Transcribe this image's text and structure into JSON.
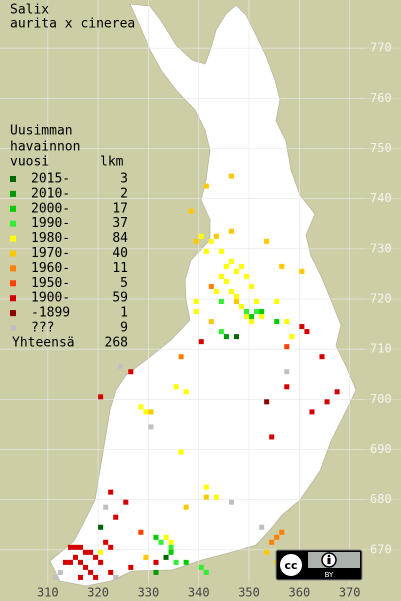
{
  "map": {
    "title": [
      "Salix",
      "aurita x cinerea"
    ],
    "legend": {
      "header": [
        "Uusimman",
        "havainnon",
        "vuosi"
      ],
      "count_header": "lkm",
      "items": [
        {
          "label": "2015-",
          "count": 3,
          "color": "#006400"
        },
        {
          "label": "2010-",
          "count": 2,
          "color": "#009a00"
        },
        {
          "label": "2000-",
          "count": 17,
          "color": "#00cc00"
        },
        {
          "label": "1990-",
          "count": 37,
          "color": "#33ee33"
        },
        {
          "label": "1980-",
          "count": 84,
          "color": "#ffff00"
        },
        {
          "label": "1970-",
          "count": 40,
          "color": "#ffc800"
        },
        {
          "label": "1960-",
          "count": 11,
          "color": "#ff8000"
        },
        {
          "label": "1950-",
          "count": 5,
          "color": "#ff4000"
        },
        {
          "label": "1900-",
          "count": 59,
          "color": "#d40000"
        },
        {
          "label": "-1899",
          "count": 1,
          "color": "#8c0000"
        },
        {
          "label": "???",
          "count": 9,
          "color": "#c0c0c0"
        }
      ],
      "total_label": "Yhteensä",
      "total": 268
    },
    "xlim": [
      300.5,
      380.2
    ],
    "ylim": [
      659.8,
      779.6
    ],
    "xticks": [
      310,
      320,
      330,
      340,
      350,
      360,
      370
    ],
    "yticks": [
      670,
      680,
      690,
      700,
      710,
      720,
      730,
      740,
      750,
      760,
      770
    ],
    "squares": [
      [
        345,
        726,
        4
      ],
      [
        346,
        727,
        4
      ],
      [
        347,
        725,
        4
      ],
      [
        348,
        726,
        4
      ],
      [
        344,
        724,
        4
      ],
      [
        345,
        723,
        4
      ],
      [
        349,
        724,
        4
      ],
      [
        350,
        722,
        4
      ],
      [
        346,
        721,
        4
      ],
      [
        347,
        720,
        4
      ],
      [
        351,
        719,
        4
      ],
      [
        348,
        718,
        4
      ],
      [
        349,
        716,
        4
      ],
      [
        350,
        715,
        4
      ],
      [
        352,
        716,
        4
      ],
      [
        343,
        721,
        4
      ],
      [
        344,
        729,
        4
      ],
      [
        342,
        731,
        4
      ],
      [
        340,
        732,
        4
      ],
      [
        341,
        729,
        4
      ],
      [
        339,
        719,
        4
      ],
      [
        339,
        717,
        4
      ],
      [
        335,
        702,
        4
      ],
      [
        337,
        701,
        4
      ],
      [
        328,
        698,
        4
      ],
      [
        329,
        697,
        4
      ],
      [
        333,
        672,
        4
      ],
      [
        334,
        671,
        4
      ],
      [
        320,
        669,
        4
      ],
      [
        341,
        682,
        4
      ],
      [
        343,
        680,
        4
      ],
      [
        336,
        689,
        4
      ],
      [
        355,
        719,
        4
      ],
      [
        357,
        715,
        4
      ],
      [
        358,
        712,
        4
      ],
      [
        341,
        742,
        5
      ],
      [
        339,
        731,
        5
      ],
      [
        343,
        732,
        5
      ],
      [
        346,
        733,
        5
      ],
      [
        353,
        731,
        5
      ],
      [
        356,
        726,
        5
      ],
      [
        360,
        725,
        5
      ],
      [
        346,
        744,
        5
      ],
      [
        338,
        737,
        5
      ],
      [
        342,
        715,
        5
      ],
      [
        341,
        680,
        5
      ],
      [
        337,
        678,
        5
      ],
      [
        355,
        667,
        5
      ],
      [
        353,
        669,
        5
      ],
      [
        329,
        668,
        5
      ],
      [
        330,
        697,
        5
      ],
      [
        347,
        719,
        5
      ],
      [
        349,
        717,
        3
      ],
      [
        351,
        717,
        3
      ],
      [
        344,
        719,
        3
      ],
      [
        332,
        671,
        3
      ],
      [
        334,
        670,
        3
      ],
      [
        335,
        667,
        3
      ],
      [
        341,
        665,
        3
      ],
      [
        340,
        666,
        3
      ],
      [
        344,
        713,
        3
      ],
      [
        350,
        716,
        2
      ],
      [
        352,
        717,
        2
      ],
      [
        334,
        669,
        2
      ],
      [
        331,
        672,
        2
      ],
      [
        337,
        667,
        2
      ],
      [
        355,
        715,
        2
      ],
      [
        345,
        712,
        1
      ],
      [
        331,
        665,
        1
      ],
      [
        347,
        712,
        0
      ],
      [
        333,
        668,
        0
      ],
      [
        320,
        674,
        0
      ],
      [
        354,
        671,
        6
      ],
      [
        355,
        672,
        6
      ],
      [
        342,
        722,
        6
      ],
      [
        336,
        708,
        6
      ],
      [
        356,
        673,
        6
      ],
      [
        357,
        710,
        7
      ],
      [
        328,
        673,
        7
      ],
      [
        314,
        670,
        8
      ],
      [
        315,
        670,
        8
      ],
      [
        316,
        670,
        8
      ],
      [
        317,
        669,
        8
      ],
      [
        318,
        669,
        8
      ],
      [
        319,
        668,
        8
      ],
      [
        315,
        668,
        8
      ],
      [
        316,
        667,
        8
      ],
      [
        317,
        666,
        8
      ],
      [
        318,
        665,
        8
      ],
      [
        314,
        667,
        8
      ],
      [
        320,
        667,
        8
      ],
      [
        321,
        671,
        8
      ],
      [
        322,
        665,
        8
      ],
      [
        313,
        667,
        8
      ],
      [
        316,
        664,
        8
      ],
      [
        319,
        664,
        8
      ],
      [
        322,
        670,
        8
      ],
      [
        323,
        676,
        8
      ],
      [
        325,
        679,
        8
      ],
      [
        322,
        681,
        8
      ],
      [
        326,
        666,
        8
      ],
      [
        331,
        667,
        8
      ],
      [
        354,
        692,
        8
      ],
      [
        365,
        699,
        8
      ],
      [
        367,
        701,
        8
      ],
      [
        362,
        697,
        8
      ],
      [
        361,
        713,
        8
      ],
      [
        364,
        708,
        8
      ],
      [
        320,
        700,
        8
      ],
      [
        357,
        702,
        8
      ],
      [
        340,
        711,
        8
      ],
      [
        326,
        705,
        8
      ],
      [
        360,
        714,
        8
      ],
      [
        353,
        699,
        9
      ],
      [
        311,
        664,
        10
      ],
      [
        312,
        665,
        10
      ],
      [
        321,
        678,
        10
      ],
      [
        323,
        664,
        10
      ],
      [
        330,
        694,
        10
      ],
      [
        324,
        706,
        10
      ],
      [
        357,
        705,
        10
      ],
      [
        346,
        679,
        10
      ],
      [
        352,
        674,
        10
      ]
    ],
    "license": {
      "cc": "cc",
      "by": "BY"
    }
  }
}
